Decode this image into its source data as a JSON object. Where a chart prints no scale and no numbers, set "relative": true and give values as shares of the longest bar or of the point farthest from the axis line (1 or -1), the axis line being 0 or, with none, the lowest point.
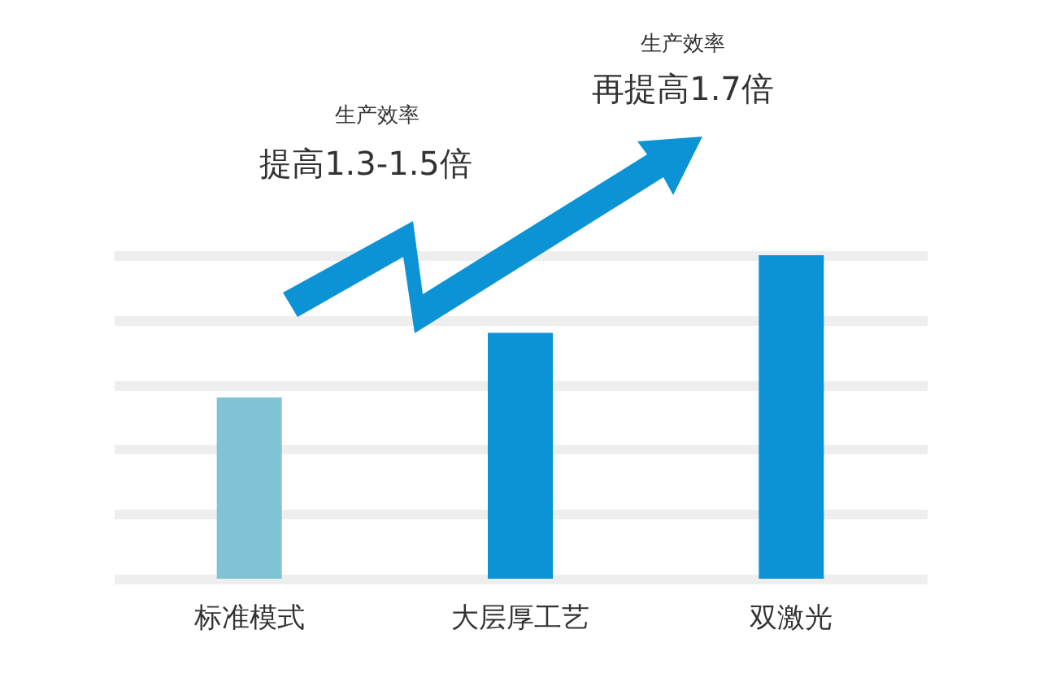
{
  "chart_data": {
    "type": "bar",
    "relative": true,
    "grid": "y",
    "categories": [
      "标准模式",
      "大层厚工艺",
      "双激光"
    ],
    "values": [
      0.56,
      0.76,
      1
    ],
    "colors": [
      "#80c3d5",
      "#0b93d5",
      "#0b93d5"
    ],
    "annotations": [
      "生产效率",
      "提高1.3-1.5倍",
      "生产效率",
      "再提高1.7倍"
    ]
  }
}
